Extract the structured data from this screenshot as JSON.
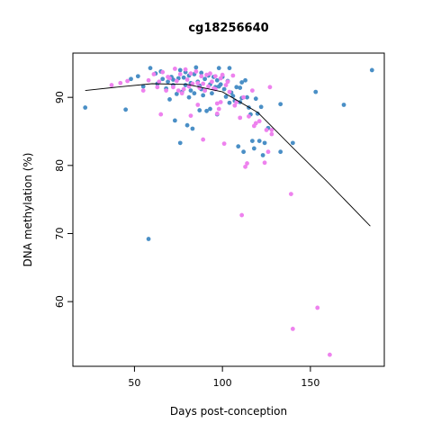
{
  "chart_data": {
    "type": "scatter",
    "title": "cg18256640",
    "xlabel": "Days post-conception",
    "ylabel": "DNA methylation (%)",
    "xlim": [
      15,
      192
    ],
    "ylim": [
      50.5,
      96.5
    ],
    "xticks": [
      50,
      100,
      150
    ],
    "yticks": [
      60,
      70,
      80,
      90
    ],
    "grid": false,
    "legend": "none",
    "colors": {
      "blue": "#4a8fc6",
      "magenta": "#ee82ee",
      "curve": "#000000"
    },
    "series": [
      {
        "color_key": "blue",
        "points": [
          [
            22,
            88.5
          ],
          [
            45,
            88.2
          ],
          [
            48,
            92.7
          ],
          [
            52,
            93.1
          ],
          [
            55,
            91.6
          ],
          [
            59,
            94.3
          ],
          [
            58,
            69.2
          ],
          [
            62,
            93.5
          ],
          [
            63,
            92.0
          ],
          [
            65,
            93.8
          ],
          [
            66,
            92.7
          ],
          [
            68,
            91.3
          ],
          [
            69,
            92.3
          ],
          [
            70,
            89.7
          ],
          [
            71,
            93.0
          ],
          [
            72,
            92.6
          ],
          [
            72,
            91.8
          ],
          [
            73,
            86.6
          ],
          [
            74,
            90.5
          ],
          [
            75,
            92.8
          ],
          [
            76,
            94.0
          ],
          [
            76,
            83.3
          ],
          [
            77,
            90.8
          ],
          [
            78,
            92.9
          ],
          [
            79,
            93.7
          ],
          [
            79,
            91.8
          ],
          [
            80,
            85.9
          ],
          [
            81,
            93.2
          ],
          [
            81,
            90.0
          ],
          [
            82,
            92.1
          ],
          [
            82,
            91.0
          ],
          [
            83,
            85.4
          ],
          [
            84,
            93.4
          ],
          [
            84,
            90.6
          ],
          [
            85,
            94.4
          ],
          [
            86,
            92.3
          ],
          [
            87,
            88.1
          ],
          [
            87,
            91.7
          ],
          [
            88,
            93.6
          ],
          [
            88,
            91.2
          ],
          [
            89,
            90.3
          ],
          [
            90,
            92.7
          ],
          [
            90,
            91.0
          ],
          [
            91,
            88.0
          ],
          [
            92,
            93.2
          ],
          [
            93,
            91.9
          ],
          [
            93,
            88.3
          ],
          [
            94,
            90.6
          ],
          [
            95,
            93.0
          ],
          [
            96,
            91.5
          ],
          [
            97,
            87.5
          ],
          [
            97,
            92.5
          ],
          [
            98,
            94.3
          ],
          [
            98,
            91.6
          ],
          [
            99,
            91.9
          ],
          [
            100,
            93.0
          ],
          [
            101,
            91.2
          ],
          [
            102,
            90.1
          ],
          [
            103,
            92.4
          ],
          [
            104,
            94.3
          ],
          [
            104,
            89.2
          ],
          [
            105,
            90.7
          ],
          [
            106,
            90.2
          ],
          [
            107,
            89.5
          ],
          [
            108,
            91.5
          ],
          [
            109,
            82.8
          ],
          [
            110,
            91.4
          ],
          [
            110,
            89.3
          ],
          [
            111,
            92.2
          ],
          [
            111,
            89.9
          ],
          [
            112,
            82.0
          ],
          [
            113,
            92.5
          ],
          [
            114,
            90.0
          ],
          [
            115,
            88.5
          ],
          [
            116,
            87.5
          ],
          [
            117,
            83.6
          ],
          [
            118,
            82.5
          ],
          [
            119,
            89.8
          ],
          [
            120,
            87.6
          ],
          [
            121,
            83.6
          ],
          [
            122,
            88.6
          ],
          [
            123,
            81.5
          ],
          [
            124,
            83.3
          ],
          [
            126,
            85.5
          ],
          [
            133,
            89.0
          ],
          [
            133,
            82.0
          ],
          [
            140,
            83.3
          ],
          [
            153,
            90.8
          ],
          [
            169,
            88.9
          ],
          [
            185,
            94.0
          ]
        ]
      },
      {
        "color_key": "magenta",
        "points": [
          [
            37,
            91.8
          ],
          [
            42,
            92.1
          ],
          [
            46,
            92.4
          ],
          [
            55,
            91.0
          ],
          [
            58,
            92.5
          ],
          [
            61,
            93.4
          ],
          [
            63,
            91.5
          ],
          [
            64,
            92.3
          ],
          [
            65,
            87.5
          ],
          [
            66,
            93.7
          ],
          [
            68,
            91.0
          ],
          [
            69,
            93.0
          ],
          [
            70,
            92.8
          ],
          [
            72,
            91.5
          ],
          [
            73,
            94.2
          ],
          [
            74,
            92.4
          ],
          [
            75,
            91.0
          ],
          [
            76,
            93.4
          ],
          [
            77,
            90.6
          ],
          [
            78,
            91.2
          ],
          [
            79,
            94.1
          ],
          [
            80,
            92.6
          ],
          [
            81,
            91.6
          ],
          [
            82,
            87.3
          ],
          [
            82,
            93.5
          ],
          [
            83,
            92.0
          ],
          [
            85,
            93.8
          ],
          [
            86,
            92.1
          ],
          [
            86,
            88.9
          ],
          [
            87,
            91.4
          ],
          [
            88,
            93.1
          ],
          [
            89,
            83.8
          ],
          [
            89,
            92.0
          ],
          [
            90,
            91.0
          ],
          [
            91,
            93.3
          ],
          [
            92,
            91.6
          ],
          [
            93,
            93.5
          ],
          [
            94,
            92.3
          ],
          [
            95,
            91.3
          ],
          [
            96,
            93.1
          ],
          [
            96,
            91.2
          ],
          [
            97,
            87.6
          ],
          [
            97,
            89.1
          ],
          [
            98,
            88.3
          ],
          [
            99,
            92.8
          ],
          [
            99,
            89.3
          ],
          [
            100,
            93.3
          ],
          [
            101,
            83.2
          ],
          [
            102,
            91.8
          ],
          [
            103,
            92.3
          ],
          [
            104,
            90.8
          ],
          [
            106,
            93.2
          ],
          [
            107,
            88.8
          ],
          [
            108,
            89.3
          ],
          [
            110,
            87.0
          ],
          [
            111,
            72.7
          ],
          [
            112,
            90.0
          ],
          [
            113,
            79.8
          ],
          [
            114,
            80.3
          ],
          [
            115,
            87.2
          ],
          [
            117,
            91.0
          ],
          [
            118,
            85.8
          ],
          [
            119,
            86.2
          ],
          [
            121,
            86.5
          ],
          [
            124,
            80.4
          ],
          [
            125,
            85.2
          ],
          [
            126,
            82.0
          ],
          [
            127,
            91.5
          ],
          [
            128,
            84.6
          ],
          [
            128,
            85.2
          ],
          [
            139,
            75.8
          ],
          [
            140,
            56.0
          ],
          [
            154,
            59.1
          ],
          [
            161,
            52.2
          ]
        ]
      }
    ],
    "trend_line": {
      "x": [
        22,
        40,
        60,
        80,
        100,
        120,
        140,
        160,
        184
      ],
      "y": [
        91.0,
        91.5,
        92.0,
        91.9,
        90.8,
        87.8,
        82.6,
        77.5,
        71.1
      ]
    }
  }
}
